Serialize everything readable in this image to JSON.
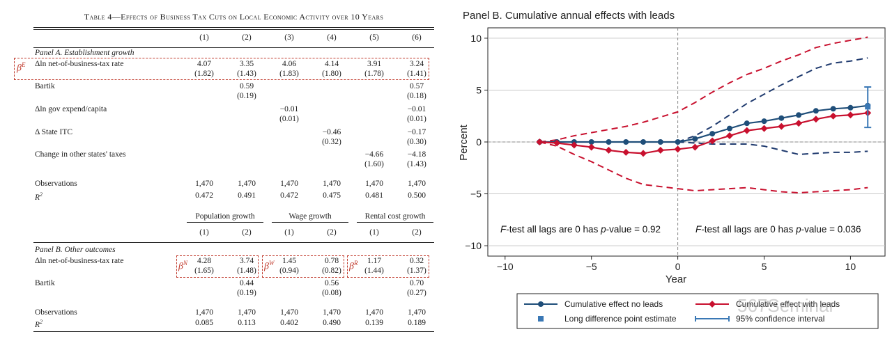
{
  "table": {
    "title": "Table 4—Effects of Business Tax Cuts on Local Economic Activity over 10 Years",
    "col_headers": [
      "(1)",
      "(2)",
      "(3)",
      "(4)",
      "(5)",
      "(6)"
    ],
    "panel_a_label": "Panel A. Establishment growth",
    "panel_a_rows": [
      {
        "label": "Δln net-of-business-tax rate",
        "coef": [
          "4.07",
          "3.35",
          "4.06",
          "4.14",
          "3.91",
          "3.24"
        ],
        "se": [
          "(1.82)",
          "(1.43)",
          "(1.83)",
          "(1.80)",
          "(1.78)",
          "(1.41)"
        ]
      },
      {
        "label": "Bartik",
        "coef": [
          "",
          "0.59",
          "",
          "",
          "",
          "0.57"
        ],
        "se": [
          "",
          "(0.19)",
          "",
          "",
          "",
          "(0.18)"
        ]
      },
      {
        "label": "Δln gov expend/capita",
        "coef": [
          "",
          "",
          "−0.01",
          "",
          "",
          "−0.01"
        ],
        "se": [
          "",
          "",
          "(0.01)",
          "",
          "",
          "(0.01)"
        ]
      },
      {
        "label": "Δ State ITC",
        "coef": [
          "",
          "",
          "",
          "−0.46",
          "",
          "−0.17"
        ],
        "se": [
          "",
          "",
          "",
          "(0.32)",
          "",
          "(0.30)"
        ]
      },
      {
        "label": "Change in other states' taxes",
        "coef": [
          "",
          "",
          "",
          "",
          "−4.66",
          "−4.18"
        ],
        "se": [
          "",
          "",
          "",
          "",
          "(1.60)",
          "(1.43)"
        ]
      }
    ],
    "panel_a_obs": {
      "label": "Observations",
      "values": [
        "1,470",
        "1,470",
        "1,470",
        "1,470",
        "1,470",
        "1,470"
      ]
    },
    "panel_a_r2": {
      "label": "R",
      "sup": "2",
      "values": [
        "0.472",
        "0.491",
        "0.472",
        "0.475",
        "0.481",
        "0.500"
      ]
    },
    "group_headers": [
      "Population growth",
      "Wage growth",
      "Rental cost growth"
    ],
    "group_cols": [
      "(1)",
      "(2)",
      "(1)",
      "(2)",
      "(1)",
      "(2)"
    ],
    "panel_b_label": "Panel B. Other outcomes",
    "panel_b_rows": [
      {
        "label": "Δln net-of-business-tax rate",
        "coef": [
          "4.28",
          "3.74",
          "1.45",
          "0.78",
          "1.17",
          "0.32"
        ],
        "se": [
          "(1.65)",
          "(1.48)",
          "(0.94)",
          "(0.82)",
          "(1.44)",
          "(1.37)"
        ]
      },
      {
        "label": "Bartik",
        "coef": [
          "",
          "0.44",
          "",
          "0.56",
          "",
          "0.70"
        ],
        "se": [
          "",
          "(0.19)",
          "",
          "(0.08)",
          "",
          "(0.27)"
        ]
      }
    ],
    "panel_b_obs": {
      "label": "Observations",
      "values": [
        "1,470",
        "1,470",
        "1,470",
        "1,470",
        "1,470",
        "1,470"
      ]
    },
    "panel_b_r2": {
      "label": "R",
      "sup": "2",
      "values": [
        "0.085",
        "0.113",
        "0.402",
        "0.490",
        "0.139",
        "0.189"
      ]
    },
    "beta_labels": {
      "E": {
        "base": "β",
        "sup": "E"
      },
      "N": {
        "base": "β",
        "sup": "N"
      },
      "W": {
        "base": "β",
        "sup": "W"
      },
      "R": {
        "base": "β",
        "sup": "R"
      }
    },
    "accent_color": "#c0392b"
  },
  "chart_data": {
    "type": "line",
    "title": "Panel B. Cumulative annual effects with leads",
    "xlabel": "Year",
    "ylabel": "Percent",
    "xlim": [
      -11,
      12
    ],
    "ylim": [
      -11,
      11
    ],
    "xticks": [
      -10,
      -5,
      0,
      5,
      10
    ],
    "yticks": [
      10,
      5,
      0,
      -5,
      -10
    ],
    "xtick_labels": [
      "−10",
      "−5",
      "0",
      "5",
      "10"
    ],
    "ytick_labels": [
      "10",
      "5",
      "0",
      "−5",
      "−10"
    ],
    "x": [
      -8,
      -7,
      -6,
      -5,
      -4,
      -3,
      -2,
      -1,
      0,
      1,
      2,
      3,
      4,
      5,
      6,
      7,
      8,
      9,
      10,
      11
    ],
    "series": [
      {
        "name": "Cumulative effect no leads",
        "color": "#1f4e79",
        "marker": "circle",
        "x": [
          -8,
          -7,
          -6,
          -5,
          -4,
          -3,
          -2,
          -1,
          0,
          1,
          2,
          3,
          4,
          5,
          6,
          7,
          8,
          9,
          10,
          11
        ],
        "values": [
          0,
          0,
          0,
          0,
          0,
          0,
          0,
          0,
          0,
          0.3,
          0.8,
          1.3,
          1.8,
          2.0,
          2.3,
          2.6,
          3.0,
          3.2,
          3.3,
          3.5
        ]
      },
      {
        "name": "Cumulative effect with leads",
        "color": "#c8102e",
        "marker": "diamond",
        "x": [
          -8,
          -7,
          -6,
          -5,
          -4,
          -3,
          -2,
          -1,
          0,
          1,
          2,
          3,
          4,
          5,
          6,
          7,
          8,
          9,
          10,
          11
        ],
        "values": [
          0,
          -0.1,
          -0.3,
          -0.5,
          -0.8,
          -1.0,
          -1.1,
          -0.8,
          -0.7,
          -0.5,
          0.1,
          0.6,
          1.1,
          1.3,
          1.5,
          1.8,
          2.2,
          2.5,
          2.6,
          2.8
        ]
      }
    ],
    "ci_lines": [
      {
        "name": "blue upper CI",
        "color": "#1f3a6e",
        "x": [
          0,
          1,
          2,
          3,
          4,
          5,
          6,
          7,
          8,
          9,
          10,
          11
        ],
        "values": [
          0,
          0.6,
          1.5,
          2.6,
          3.7,
          4.6,
          5.5,
          6.3,
          7.1,
          7.6,
          7.8,
          8.1
        ]
      },
      {
        "name": "blue lower CI",
        "color": "#1f3a6e",
        "x": [
          0,
          1,
          2,
          3,
          4,
          5,
          6,
          7,
          8,
          9,
          10,
          11
        ],
        "values": [
          0,
          -0.1,
          -0.2,
          -0.2,
          -0.2,
          -0.4,
          -0.8,
          -1.2,
          -1.1,
          -1.0,
          -1.0,
          -0.9
        ]
      },
      {
        "name": "red upper CI",
        "color": "#c8102e",
        "x": [
          -8,
          -7,
          -6,
          -5,
          -4,
          -3,
          -2,
          -1,
          0,
          1,
          2,
          3,
          4,
          5,
          6,
          7,
          8,
          9,
          10,
          11
        ],
        "values": [
          0,
          0.2,
          0.6,
          0.9,
          1.2,
          1.5,
          1.9,
          2.4,
          2.9,
          3.8,
          4.8,
          5.7,
          6.5,
          7.1,
          7.8,
          8.4,
          9.1,
          9.5,
          9.8,
          10.1
        ]
      },
      {
        "name": "red lower CI",
        "color": "#c8102e",
        "x": [
          -8,
          -7,
          -6,
          -5,
          -4,
          -3,
          -2,
          -1,
          0,
          1,
          2,
          3,
          4,
          5,
          6,
          7,
          8,
          9,
          10,
          11
        ],
        "values": [
          0,
          -0.4,
          -1.2,
          -1.9,
          -2.7,
          -3.5,
          -4.1,
          -4.3,
          -4.5,
          -4.7,
          -4.6,
          -4.5,
          -4.4,
          -4.6,
          -4.8,
          -4.9,
          -4.8,
          -4.7,
          -4.6,
          -4.4
        ]
      }
    ],
    "long_difference": {
      "x": 11,
      "estimate": 3.4,
      "ci": [
        1.4,
        5.3
      ],
      "color": "#3a78b5"
    },
    "annotations": [
      {
        "text_prefix": "F",
        "text": "-test all lags are 0 has ",
        "p": "p",
        "text_suffix": "-value = 0.92"
      },
      {
        "text_prefix": "F",
        "text": "-test all lags are 0 has ",
        "p": "p",
        "text_suffix": "-value = 0.036"
      }
    ],
    "legend": {
      "placement": "bottom",
      "items": [
        "Cumulative effect no leads",
        "Cumulative effect with leads",
        "Long difference point estimate",
        "95% confidence interval"
      ]
    },
    "watermark": "567Seminar"
  }
}
